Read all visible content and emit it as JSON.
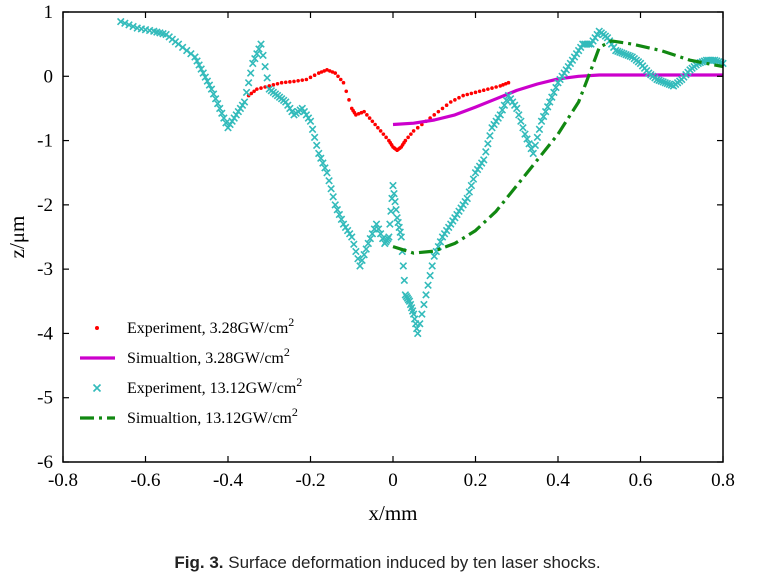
{
  "caption": {
    "label": "Fig. 3.",
    "text": "Surface deformation induced by ten laser shocks."
  },
  "chart_data": {
    "type": "line",
    "title": "",
    "xlabel": "x/mm",
    "ylabel": "z/μm",
    "xlim": [
      -0.8,
      0.8
    ],
    "ylim": [
      -6,
      1
    ],
    "xticks": [
      -0.8,
      -0.6,
      -0.4,
      -0.2,
      0,
      0.2,
      0.4,
      0.6,
      0.8
    ],
    "yticks": [
      -6,
      -5,
      -4,
      -3,
      -2,
      -1,
      0,
      1
    ],
    "xtick_labels": [
      "-0.8",
      "-0.6",
      "-0.4",
      "-0.2",
      "0",
      "0.2",
      "0.4",
      "0.6",
      "0.8"
    ],
    "ytick_labels": [
      "-6",
      "-5",
      "-4",
      "-3",
      "-2",
      "-1",
      "0",
      "1"
    ],
    "grid": false,
    "legend_position": "bottom-left",
    "series": [
      {
        "name": "Experiment, 3.28GW/cm²",
        "style": "dots",
        "color": "#ff0000",
        "x": [
          -0.35,
          -0.33,
          -0.3,
          -0.27,
          -0.24,
          -0.21,
          -0.18,
          -0.16,
          -0.14,
          -0.12,
          -0.1,
          -0.09,
          -0.07,
          -0.05,
          -0.03,
          -0.01,
          0.0,
          0.01,
          0.02,
          0.03,
          0.05,
          0.08,
          0.11,
          0.14,
          0.17,
          0.2,
          0.23,
          0.26,
          0.28
        ],
        "y": [
          -0.3,
          -0.2,
          -0.15,
          -0.1,
          -0.08,
          -0.05,
          0.05,
          0.1,
          0.05,
          -0.1,
          -0.5,
          -0.6,
          -0.55,
          -0.7,
          -0.85,
          -1.0,
          -1.1,
          -1.15,
          -1.1,
          -1.0,
          -0.85,
          -0.7,
          -0.55,
          -0.4,
          -0.3,
          -0.25,
          -0.2,
          -0.15,
          -0.1
        ]
      },
      {
        "name": "Simualtion, 3.28GW/cm²",
        "style": "solid",
        "color": "#cc00cc",
        "x": [
          0.0,
          0.05,
          0.1,
          0.15,
          0.2,
          0.25,
          0.3,
          0.35,
          0.4,
          0.45,
          0.5,
          0.6,
          0.7,
          0.8
        ],
        "y": [
          -0.75,
          -0.73,
          -0.68,
          -0.6,
          -0.48,
          -0.35,
          -0.22,
          -0.12,
          -0.04,
          0.0,
          0.02,
          0.02,
          0.02,
          0.02
        ]
      },
      {
        "name": "Experiment, 13.12GW/cm²",
        "style": "x",
        "color": "#33bbbb",
        "x": [
          -0.66,
          -0.62,
          -0.58,
          -0.55,
          -0.52,
          -0.48,
          -0.46,
          -0.44,
          -0.42,
          -0.4,
          -0.38,
          -0.36,
          -0.34,
          -0.32,
          -0.3,
          -0.28,
          -0.26,
          -0.24,
          -0.22,
          -0.2,
          -0.18,
          -0.16,
          -0.14,
          -0.12,
          -0.1,
          -0.08,
          -0.06,
          -0.04,
          -0.02,
          -0.01,
          0.0,
          0.01,
          0.02,
          0.03,
          0.04,
          0.05,
          0.06,
          0.08,
          0.1,
          0.12,
          0.14,
          0.16,
          0.18,
          0.2,
          0.22,
          0.24,
          0.26,
          0.28,
          0.3,
          0.32,
          0.34,
          0.36,
          0.38,
          0.4,
          0.42,
          0.44,
          0.46,
          0.48,
          0.5,
          0.52,
          0.54,
          0.56,
          0.58,
          0.6,
          0.62,
          0.64,
          0.66,
          0.68,
          0.7,
          0.72,
          0.74,
          0.76,
          0.78,
          0.8
        ],
        "y": [
          0.85,
          0.75,
          0.7,
          0.65,
          0.5,
          0.3,
          0.05,
          -0.2,
          -0.5,
          -0.8,
          -0.6,
          -0.4,
          0.2,
          0.5,
          -0.2,
          -0.3,
          -0.4,
          -0.6,
          -0.5,
          -0.7,
          -1.2,
          -1.5,
          -2.0,
          -2.3,
          -2.5,
          -2.95,
          -2.6,
          -2.3,
          -2.6,
          -2.5,
          -1.7,
          -2.2,
          -2.5,
          -3.4,
          -3.5,
          -3.7,
          -4.0,
          -3.4,
          -2.8,
          -2.5,
          -2.3,
          -2.1,
          -1.9,
          -1.5,
          -1.3,
          -0.8,
          -0.6,
          -0.3,
          -0.5,
          -0.9,
          -1.2,
          -0.7,
          -0.4,
          -0.1,
          0.1,
          0.3,
          0.5,
          0.5,
          0.7,
          0.6,
          0.4,
          0.35,
          0.3,
          0.2,
          0.05,
          -0.05,
          -0.1,
          -0.15,
          -0.05,
          0.1,
          0.2,
          0.25,
          0.25,
          0.2
        ]
      },
      {
        "name": "Simualtion, 13.12GW/cm²",
        "style": "dashdot",
        "color": "#118811",
        "x": [
          0.0,
          0.05,
          0.1,
          0.15,
          0.2,
          0.25,
          0.3,
          0.35,
          0.4,
          0.45,
          0.48,
          0.5,
          0.53,
          0.58,
          0.65,
          0.72,
          0.8
        ],
        "y": [
          -2.65,
          -2.75,
          -2.72,
          -2.6,
          -2.4,
          -2.1,
          -1.7,
          -1.3,
          -0.9,
          -0.4,
          0.1,
          0.45,
          0.55,
          0.5,
          0.4,
          0.25,
          0.15
        ]
      }
    ]
  },
  "legend": {
    "items": [
      {
        "label": "Experiment, 3.28GW/cm",
        "sup": "2"
      },
      {
        "label": "Simualtion, 3.28GW/cm",
        "sup": "2"
      },
      {
        "label": "Experiment, 13.12GW/cm",
        "sup": "2"
      },
      {
        "label": "Simualtion, 13.12GW/cm",
        "sup": "2"
      }
    ]
  }
}
